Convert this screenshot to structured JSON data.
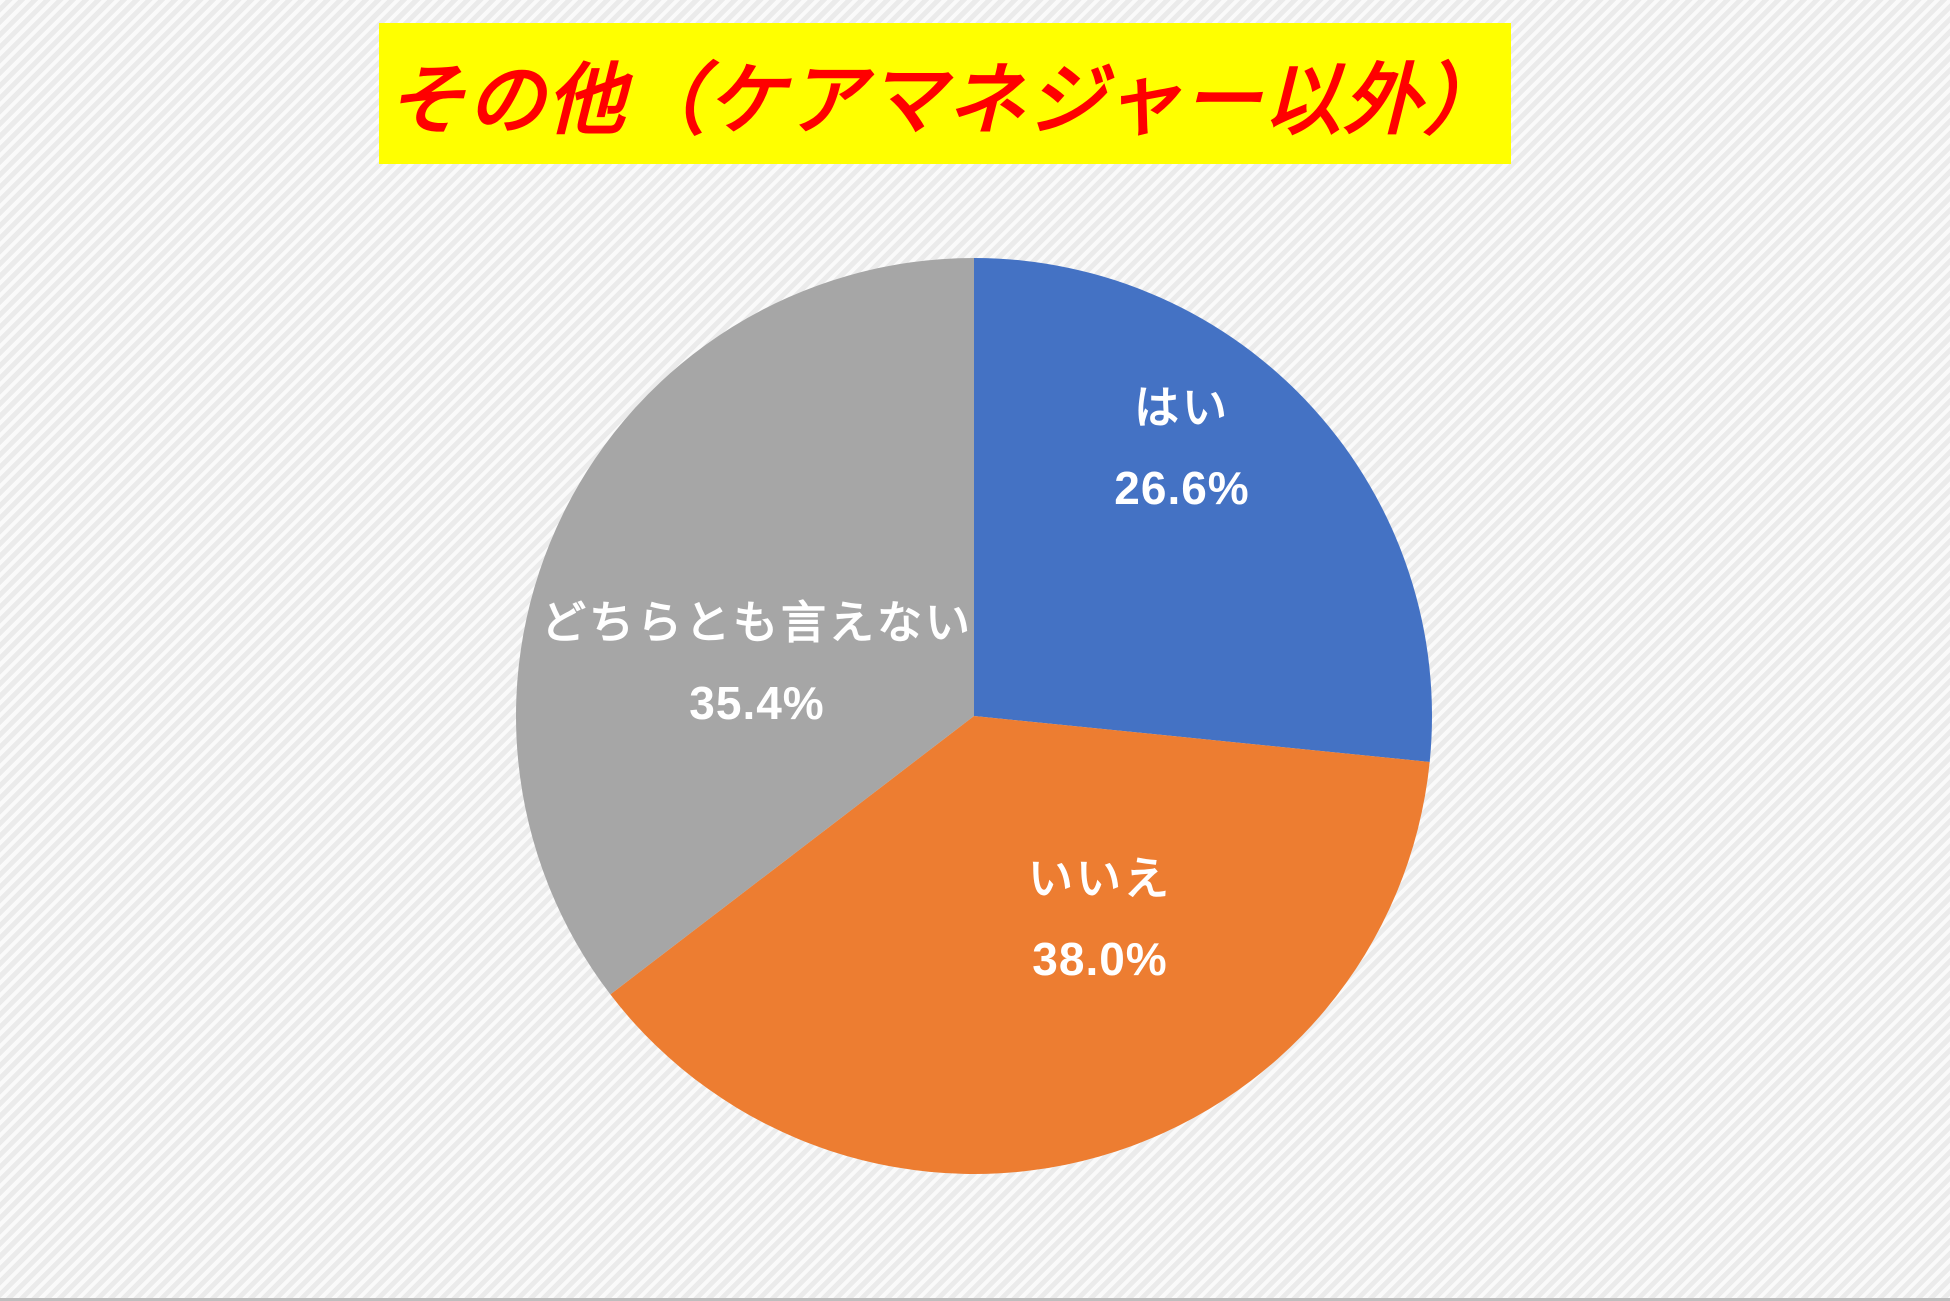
{
  "title": {
    "text": "その他（ケアマネジャー以外）",
    "text_color": "#ff0000",
    "highlight_color": "#ffff00"
  },
  "chart_data": {
    "type": "pie",
    "title": "その他（ケアマネジャー以外）",
    "categories": [
      "はい",
      "いいえ",
      "どちらとも言えない"
    ],
    "values": [
      26.6,
      38.0,
      35.4
    ],
    "unit": "%",
    "start_angle": "12-oclock",
    "direction": "clockwise",
    "legend_position": "none",
    "data_labels": "inside, white bold, category name + percentage",
    "slices": [
      {
        "label": "はい",
        "value": 26.6,
        "value_label": "26.6%",
        "color": "#4472c4"
      },
      {
        "label": "いいえ",
        "value": 38.0,
        "value_label": "38.0%",
        "color": "#ed7d31"
      },
      {
        "label": "どちらとも言えない",
        "value": 35.4,
        "value_label": "35.4%",
        "color": "#a6a6a6"
      }
    ]
  }
}
